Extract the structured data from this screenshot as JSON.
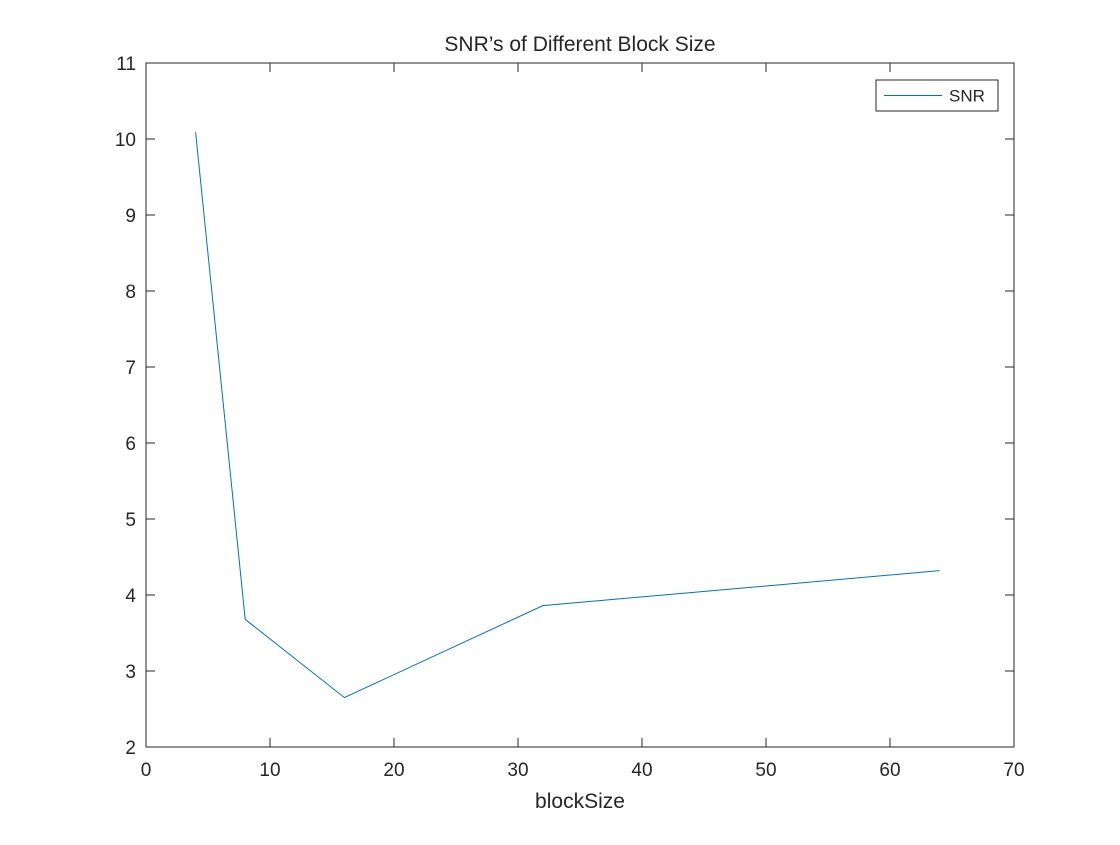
{
  "chart_data": {
    "type": "line",
    "title": "SNR’s of Different Block Size",
    "xlabel": "blockSize",
    "ylabel": "",
    "xlim": [
      0,
      70
    ],
    "ylim": [
      2,
      11
    ],
    "xticks": [
      0,
      10,
      20,
      30,
      40,
      50,
      60,
      70
    ],
    "yticks": [
      2,
      3,
      4,
      5,
      6,
      7,
      8,
      9,
      10,
      11
    ],
    "grid": false,
    "legend_position": "top-right",
    "series": [
      {
        "name": "SNR",
        "color": "#0072BD",
        "x": [
          4,
          8,
          16,
          32,
          64
        ],
        "y": [
          10.09,
          3.68,
          2.65,
          3.86,
          4.32
        ]
      }
    ]
  }
}
